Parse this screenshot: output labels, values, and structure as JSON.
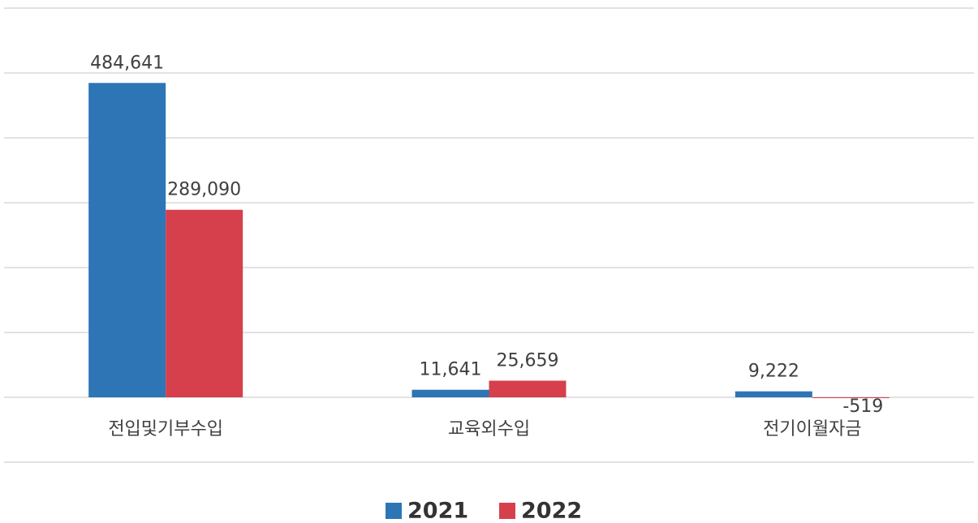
{
  "chart_data": {
    "type": "bar",
    "categories": [
      "전입및기부수입",
      "교육외수입",
      "전기이월자금"
    ],
    "series": [
      {
        "name": "2021",
        "color": "#2e75b6",
        "values": [
          484641,
          11641,
          9222
        ],
        "value_labels": [
          "484,641",
          "11,641",
          "9,222"
        ]
      },
      {
        "name": "2022",
        "color": "#d5404c",
        "values": [
          289090,
          25659,
          -519
        ],
        "value_labels": [
          "289,090",
          "25,659",
          "-519"
        ]
      }
    ],
    "ylim": [
      -100000,
      600000
    ],
    "yticks": [
      -100000,
      0,
      100000,
      200000,
      300000,
      400000,
      500000,
      600000
    ],
    "grid": true,
    "legend": "bottom"
  }
}
